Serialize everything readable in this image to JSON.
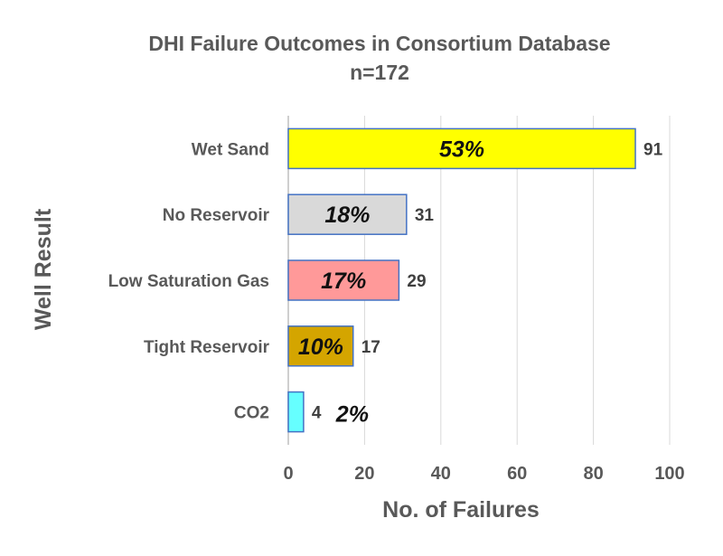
{
  "chart_data": {
    "type": "bar",
    "orientation": "horizontal",
    "title": "DHI Failure Outcomes in Consortium Database",
    "subtitle": "n=172",
    "xlabel": "No. of Failures",
    "ylabel": "Well Result",
    "xlim": [
      0,
      100
    ],
    "xticks": [
      "0",
      "20",
      "40",
      "60",
      "80",
      "100"
    ],
    "grid": "vertical",
    "categories": [
      "Wet Sand",
      "No Reservoir",
      "Low Saturation Gas",
      "Tight Reservoir",
      "CO2"
    ],
    "values": [
      91,
      31,
      29,
      17,
      4
    ],
    "value_labels": [
      "91",
      "31",
      "29",
      "17",
      "4"
    ],
    "percent_labels": [
      "53%",
      "18%",
      "17%",
      "10%",
      "2%"
    ],
    "colors": [
      "#FFFF00",
      "#D9D9D9",
      "#FF9999",
      "#D4A500",
      "#66FFFF"
    ],
    "border_color": "#4472C4"
  }
}
